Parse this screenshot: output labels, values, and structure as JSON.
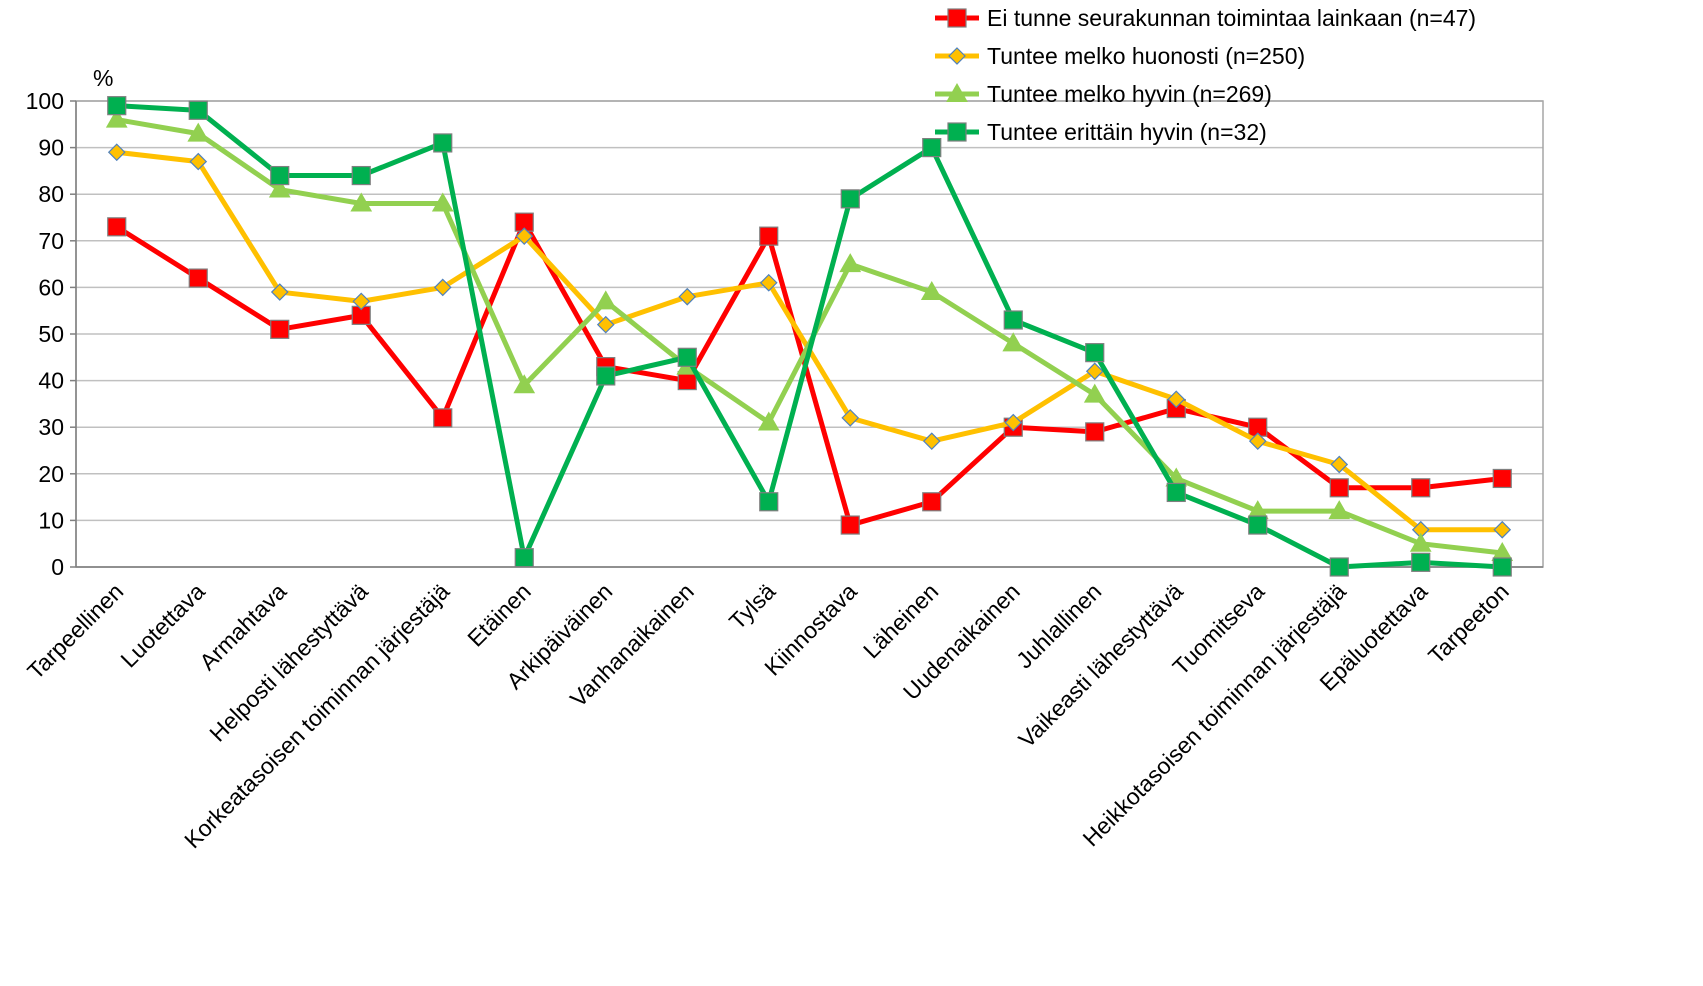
{
  "chart_data": {
    "type": "line",
    "ylabel": "%",
    "ylim": [
      0,
      100
    ],
    "yticks": [
      0,
      10,
      20,
      30,
      40,
      50,
      60,
      70,
      80,
      90,
      100
    ],
    "grid": true,
    "legend_position": "top-right",
    "categories": [
      "Tarpeellinen",
      "Luotettava",
      "Armahtava",
      "Helposti lähestyttävä",
      "Korkeatasoisen toiminnan järjestäjä",
      "Etäinen",
      "Arkipäiväinen",
      "Vanhanaikainen",
      "Tylsä",
      "Kiinnostava",
      "Läheinen",
      "Uudenaikainen",
      "Juhlallinen",
      "Vaikeasti lähestyttävä",
      "Tuomitseva",
      "Heikkotasoisen toiminnan järjestäjä",
      "Epäluotettava",
      "Tarpeeton"
    ],
    "series": [
      {
        "name": "Ei tunne seurakunnan toimintaa lainkaan (n=47)",
        "color": "#ff0000",
        "marker": "square",
        "values": [
          73,
          62,
          51,
          54,
          32,
          74,
          43,
          40,
          71,
          9,
          14,
          30,
          29,
          34,
          30,
          17,
          17,
          19
        ]
      },
      {
        "name": "Tuntee melko huonosti (n=250)",
        "color": "#ffc000",
        "marker": "diamond",
        "values": [
          89,
          87,
          59,
          57,
          60,
          71,
          52,
          58,
          61,
          32,
          27,
          31,
          42,
          36,
          27,
          22,
          8,
          8
        ]
      },
      {
        "name": "Tuntee melko hyvin (n=269)",
        "color": "#92d050",
        "marker": "triangle",
        "values": [
          96,
          93,
          81,
          78,
          78,
          39,
          57,
          43,
          31,
          65,
          59,
          48,
          37,
          19,
          12,
          12,
          5,
          3
        ]
      },
      {
        "name": "Tuntee erittäin hyvin (n=32)",
        "color": "#00b050",
        "marker": "square",
        "values": [
          99,
          98,
          84,
          84,
          91,
          2,
          41,
          45,
          14,
          79,
          90,
          53,
          46,
          16,
          9,
          0,
          1,
          0
        ]
      }
    ]
  }
}
